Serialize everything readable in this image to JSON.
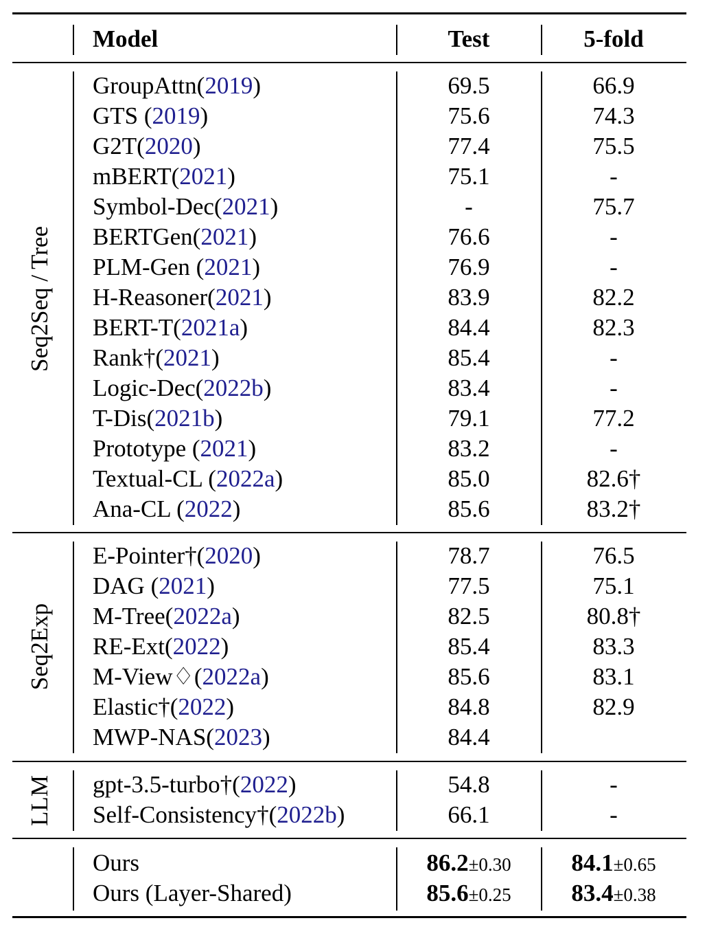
{
  "header": {
    "model": "Model",
    "test": "Test",
    "fold": "5-fold"
  },
  "groups": [
    {
      "label": "Seq2Seq / Tree",
      "rows": [
        {
          "name": "GroupAttn(",
          "cite": "2019",
          "tail": ")",
          "test": "69.5",
          "fold": "66.9"
        },
        {
          "name": "GTS (",
          "cite": "2019",
          "tail": ")",
          "test": "75.6",
          "fold": "74.3"
        },
        {
          "name": "G2T(",
          "cite": "2020",
          "tail": ")",
          "test": "77.4",
          "fold": "75.5"
        },
        {
          "name": "mBERT(",
          "cite": "2021",
          "tail": ")",
          "test": "75.1",
          "fold": "-"
        },
        {
          "name": "Symbol-Dec(",
          "cite": "2021",
          "tail": ")",
          "test": "-",
          "fold": "75.7"
        },
        {
          "name": "BERTGen(",
          "cite": "2021",
          "tail": ")",
          "test": "76.6",
          "fold": "-"
        },
        {
          "name": "PLM-Gen (",
          "cite": "2021",
          "tail": ")",
          "test": "76.9",
          "fold": "-"
        },
        {
          "name": "H-Reasoner(",
          "cite": "2021",
          "tail": ")",
          "test": "83.9",
          "fold": "82.2"
        },
        {
          "name": "BERT-T(",
          "cite": "2021a",
          "tail": ")",
          "test": "84.4",
          "fold": "82.3"
        },
        {
          "name": "Rank†(",
          "cite": "2021",
          "tail": ")",
          "test": "85.4",
          "fold": "-"
        },
        {
          "name": "Logic-Dec(",
          "cite": "2022b",
          "tail": ")",
          "test": "83.4",
          "fold": "-"
        },
        {
          "name": "T-Dis(",
          "cite": "2021b",
          "tail": ")",
          "test": "79.1",
          "fold": "77.2"
        },
        {
          "name": "Prototype (",
          "cite": "2021",
          "tail": ")",
          "test": "83.2",
          "fold": "-"
        },
        {
          "name": "Textual-CL (",
          "cite": "2022a",
          "tail": ")",
          "test": "85.0",
          "fold": "82.6†"
        },
        {
          "name": "Ana-CL (",
          "cite": "2022",
          "tail": ")",
          "test": "85.6",
          "fold": "83.2†"
        }
      ]
    },
    {
      "label": "Seq2Exp",
      "rows": [
        {
          "name": "E-Pointer†(",
          "cite": "2020",
          "tail": ")",
          "test": "78.7",
          "fold": "76.5"
        },
        {
          "name": "DAG (",
          "cite": "2021",
          "tail": ")",
          "test": "77.5",
          "fold": "75.1"
        },
        {
          "name": "M-Tree(",
          "cite": "2022a",
          "tail": ")",
          "test": "82.5",
          "fold": "80.8†"
        },
        {
          "name": "RE-Ext(",
          "cite": "2022",
          "tail": ")",
          "test": "85.4",
          "fold": "83.3"
        },
        {
          "name": "M-View♢(",
          "cite": "2022a",
          "tail": ")",
          "test": "85.6",
          "fold": "83.1"
        },
        {
          "name": "Elastic†(",
          "cite": "2022",
          "tail": ")",
          "test": "84.8",
          "fold": "82.9"
        },
        {
          "name": "MWP-NAS(",
          "cite": "2023",
          "tail": ")",
          "test": "84.4",
          "fold": ""
        }
      ]
    },
    {
      "label": "LLM",
      "rows": [
        {
          "name": "gpt-3.5-turbo†(",
          "cite": "2022",
          "tail": ")",
          "test": "54.8",
          "fold": "-"
        },
        {
          "name": "Self-Consistency†(",
          "cite": "2022b",
          "tail": ")",
          "test": "66.1",
          "fold": "-"
        }
      ]
    }
  ],
  "ours": [
    {
      "name": "Ours",
      "test": "86.2",
      "test_pm": "±0.30",
      "fold": "84.1",
      "fold_pm": "±0.65"
    },
    {
      "name": "Ours (Layer-Shared)",
      "test": "85.6",
      "test_pm": "±0.25",
      "fold": "83.4",
      "fold_pm": "±0.38"
    }
  ]
}
